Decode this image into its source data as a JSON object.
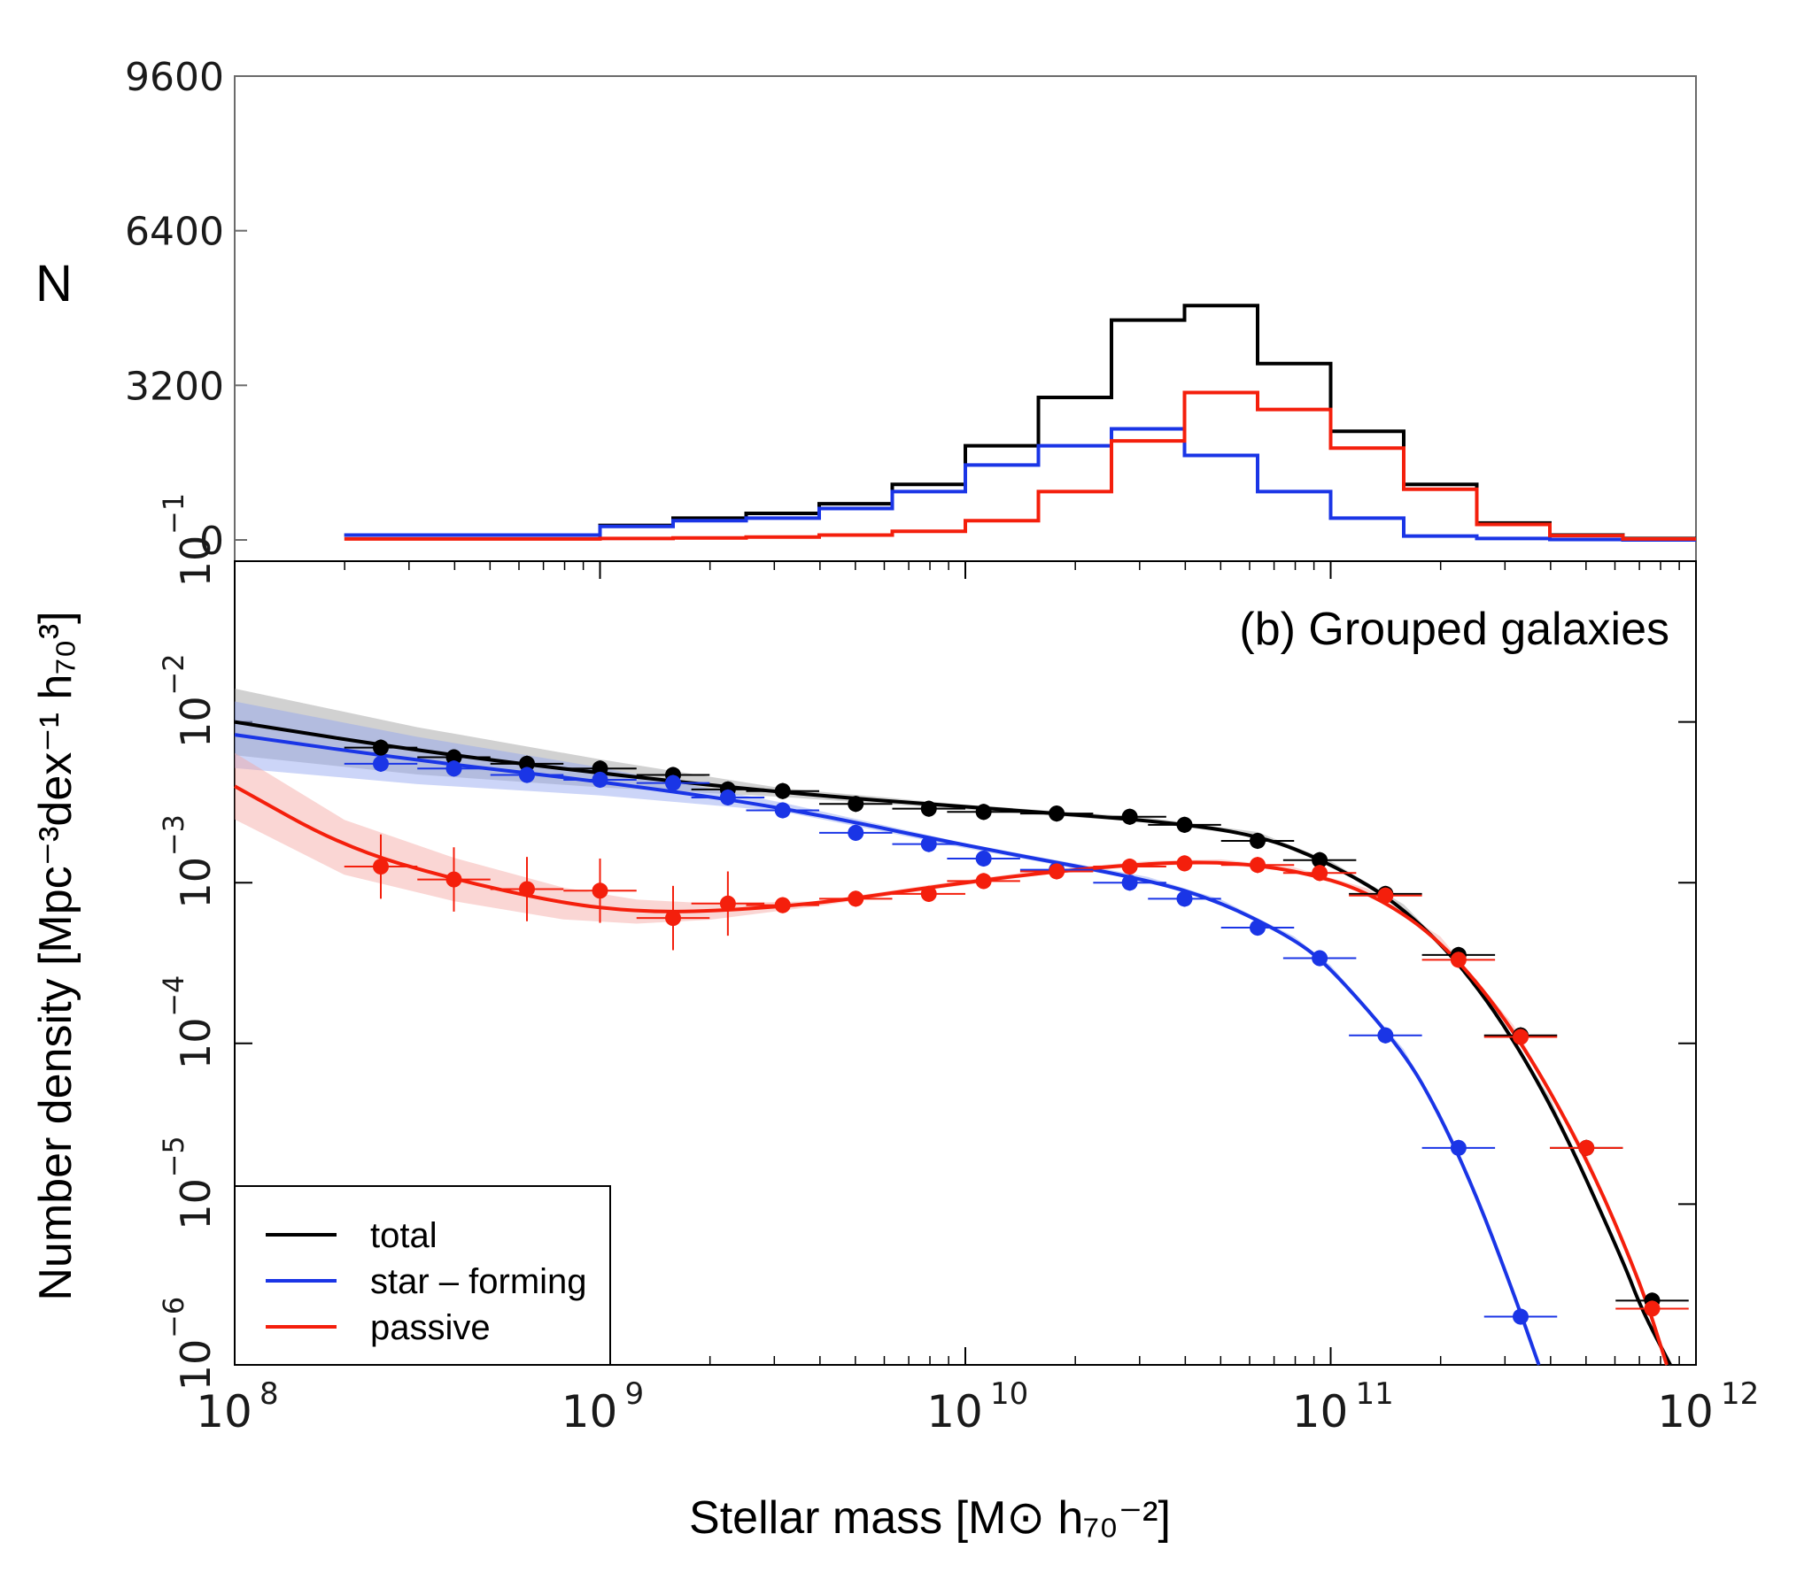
{
  "chart_data": [
    {
      "type": "histogram",
      "panel": "top",
      "ylabel": "N",
      "y_ticks": [
        "0",
        "3200",
        "6400",
        "9600"
      ],
      "ylim": [
        0,
        9600
      ],
      "xscale": "log",
      "xlim": [
        100000000.0,
        1000000000000.0
      ],
      "colors": {
        "total": "#000000",
        "star_forming": "#1a35e6",
        "passive": "#f41f0c"
      },
      "bin_edges_log10": [
        8.3,
        8.8,
        9.0,
        9.2,
        9.4,
        9.6,
        9.8,
        10.0,
        10.2,
        10.4,
        10.6,
        10.8,
        11.0,
        11.2,
        11.4,
        11.6,
        11.8,
        12.0
      ],
      "series": [
        {
          "name": "total",
          "values": [
            100,
            100,
            300,
            450,
            550,
            750,
            1150,
            1950,
            2950,
            4550,
            4850,
            3650,
            2250,
            1150,
            350,
            100,
            30
          ]
        },
        {
          "name": "star_forming",
          "values": [
            100,
            100,
            280,
            400,
            450,
            650,
            1000,
            1550,
            1950,
            2300,
            1750,
            1000,
            450,
            80,
            30,
            10,
            0
          ]
        },
        {
          "name": "passive",
          "values": [
            20,
            20,
            30,
            40,
            60,
            100,
            180,
            400,
            1000,
            2050,
            3050,
            2700,
            1900,
            1050,
            320,
            90,
            20
          ]
        }
      ]
    },
    {
      "type": "scatter+line",
      "panel": "bottom",
      "title": "(b) Grouped galaxies",
      "xlabel": "Stellar mass [M⊙ h₇₀⁻²]",
      "ylabel": "Number density [Mpc⁻³dex⁻¹ h₇₀³]",
      "xscale": "log",
      "yscale": "log",
      "xlim": [
        100000000.0,
        1000000000000.0
      ],
      "ylim": [
        1e-06,
        0.1
      ],
      "x_ticks": [
        {
          "base": "10",
          "exp": "8"
        },
        {
          "base": "10",
          "exp": "9"
        },
        {
          "base": "10",
          "exp": "10"
        },
        {
          "base": "10",
          "exp": "11"
        },
        {
          "base": "10",
          "exp": "12"
        }
      ],
      "y_ticks": [
        {
          "base": "10",
          "exp": "−6"
        },
        {
          "base": "10",
          "exp": "−5"
        },
        {
          "base": "10",
          "exp": "−4"
        },
        {
          "base": "10",
          "exp": "−3"
        },
        {
          "base": "10",
          "exp": "−2"
        },
        {
          "base": "10",
          "exp": "−1"
        }
      ],
      "legend": {
        "placement": "lower-left",
        "entries": [
          "total",
          "star – forming",
          "passive"
        ]
      },
      "series": [
        {
          "name": "total",
          "color": "#000000",
          "points_log10": [
            [
              8.4,
              -2.16
            ],
            [
              8.6,
              -2.22
            ],
            [
              8.8,
              -2.26
            ],
            [
              9.0,
              -2.29
            ],
            [
              9.2,
              -2.33
            ],
            [
              9.35,
              -2.42
            ],
            [
              9.5,
              -2.43
            ],
            [
              9.7,
              -2.51
            ],
            [
              9.9,
              -2.54
            ],
            [
              10.05,
              -2.56
            ],
            [
              10.25,
              -2.57
            ],
            [
              10.45,
              -2.59
            ],
            [
              10.6,
              -2.64
            ],
            [
              10.8,
              -2.74
            ],
            [
              10.97,
              -2.86
            ],
            [
              11.15,
              -3.07
            ],
            [
              11.35,
              -3.45
            ],
            [
              11.52,
              -3.95
            ],
            [
              11.7,
              -4.65
            ],
            [
              11.88,
              -5.6
            ]
          ],
          "fit_log10": [
            [
              8.0,
              -2.0
            ],
            [
              8.5,
              -2.18
            ],
            [
              9.0,
              -2.32
            ],
            [
              9.5,
              -2.44
            ],
            [
              10.0,
              -2.53
            ],
            [
              10.5,
              -2.61
            ],
            [
              10.8,
              -2.7
            ],
            [
              11.0,
              -2.88
            ],
            [
              11.2,
              -3.15
            ],
            [
              11.4,
              -3.62
            ],
            [
              11.6,
              -4.35
            ],
            [
              11.8,
              -5.35
            ],
            [
              11.85,
              -5.65
            ],
            [
              11.93,
              -6.0
            ]
          ]
        },
        {
          "name": "star – forming",
          "color": "#1a35e6",
          "points_log10": [
            [
              8.4,
              -2.26
            ],
            [
              8.6,
              -2.29
            ],
            [
              8.8,
              -2.33
            ],
            [
              9.0,
              -2.36
            ],
            [
              9.2,
              -2.38
            ],
            [
              9.35,
              -2.47
            ],
            [
              9.5,
              -2.55
            ],
            [
              9.7,
              -2.69
            ],
            [
              9.9,
              -2.76
            ],
            [
              10.05,
              -2.85
            ],
            [
              10.25,
              -2.92
            ],
            [
              10.45,
              -3.0
            ],
            [
              10.6,
              -3.1
            ],
            [
              10.8,
              -3.28
            ],
            [
              10.97,
              -3.47
            ],
            [
              11.15,
              -3.95
            ],
            [
              11.35,
              -4.65
            ],
            [
              11.52,
              -5.7
            ]
          ],
          "fit_log10": [
            [
              8.0,
              -2.08
            ],
            [
              8.5,
              -2.24
            ],
            [
              9.0,
              -2.37
            ],
            [
              9.5,
              -2.53
            ],
            [
              10.0,
              -2.77
            ],
            [
              10.5,
              -2.98
            ],
            [
              10.7,
              -3.12
            ],
            [
              10.9,
              -3.35
            ],
            [
              11.0,
              -3.53
            ],
            [
              11.2,
              -4.05
            ],
            [
              11.3,
              -4.45
            ],
            [
              11.4,
              -4.95
            ],
            [
              11.5,
              -5.55
            ],
            [
              11.57,
              -6.0
            ]
          ]
        },
        {
          "name": "passive",
          "color": "#f41f0c",
          "points_log10": [
            [
              8.4,
              -2.9
            ],
            [
              8.6,
              -2.98
            ],
            [
              8.8,
              -3.04
            ],
            [
              9.0,
              -3.05
            ],
            [
              9.2,
              -3.22
            ],
            [
              9.35,
              -3.13
            ],
            [
              9.5,
              -3.14
            ],
            [
              9.7,
              -3.1
            ],
            [
              9.9,
              -3.07
            ],
            [
              10.05,
              -2.99
            ],
            [
              10.25,
              -2.93
            ],
            [
              10.45,
              -2.9
            ],
            [
              10.6,
              -2.88
            ],
            [
              10.8,
              -2.89
            ],
            [
              10.97,
              -2.94
            ],
            [
              11.15,
              -3.08
            ],
            [
              11.35,
              -3.48
            ],
            [
              11.52,
              -3.96
            ],
            [
              11.7,
              -4.65
            ],
            [
              11.88,
              -5.65
            ]
          ],
          "fit_log10": [
            [
              8.0,
              -2.4
            ],
            [
              8.3,
              -2.78
            ],
            [
              8.6,
              -2.98
            ],
            [
              8.9,
              -3.13
            ],
            [
              9.1,
              -3.18
            ],
            [
              9.3,
              -3.18
            ],
            [
              9.6,
              -3.13
            ],
            [
              9.9,
              -3.03
            ],
            [
              10.2,
              -2.94
            ],
            [
              10.5,
              -2.88
            ],
            [
              10.7,
              -2.87
            ],
            [
              10.9,
              -2.92
            ],
            [
              11.1,
              -3.05
            ],
            [
              11.3,
              -3.35
            ],
            [
              11.5,
              -3.9
            ],
            [
              11.7,
              -4.7
            ],
            [
              11.85,
              -5.5
            ],
            [
              11.92,
              -6.0
            ]
          ]
        }
      ]
    }
  ]
}
